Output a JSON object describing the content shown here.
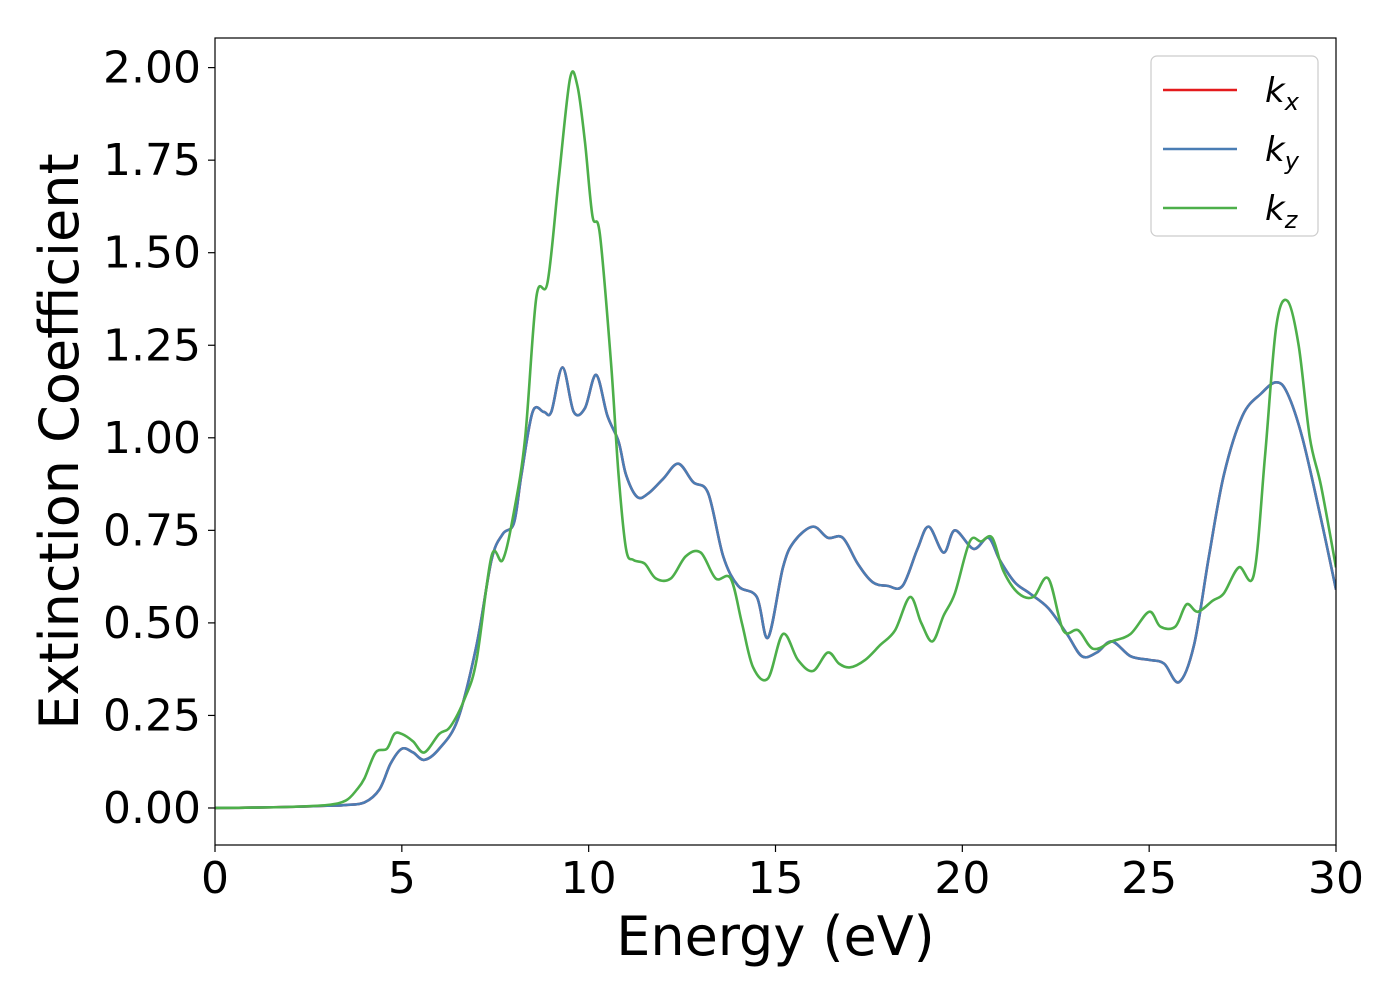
{
  "chart_data": {
    "type": "line",
    "title": "",
    "xlabel": "Energy (eV)",
    "ylabel": "Extinction Coefficient",
    "xlim": [
      0,
      30
    ],
    "ylim": [
      -0.1,
      2.08
    ],
    "xticks": [
      0,
      5,
      10,
      15,
      20,
      25,
      30
    ],
    "xtick_labels": [
      "0",
      "5",
      "10",
      "15",
      "20",
      "25",
      "30"
    ],
    "yticks": [
      0.0,
      0.25,
      0.5,
      0.75,
      1.0,
      1.25,
      1.5,
      1.75,
      2.0
    ],
    "ytick_labels": [
      "0.00",
      "0.25",
      "0.50",
      "0.75",
      "1.00",
      "1.25",
      "1.50",
      "1.75",
      "2.00"
    ],
    "grid": false,
    "legend_position": "top-right",
    "series": [
      {
        "name": "kx",
        "legend_base": "k",
        "legend_sub": "x",
        "color": "#e41a1c",
        "x": [
          0,
          1,
          2,
          3,
          3.5,
          4,
          4.4,
          4.7,
          5,
          5.3,
          5.6,
          6,
          6.5,
          7,
          7.4,
          7.7,
          8,
          8.2,
          8.5,
          8.8,
          9,
          9.3,
          9.6,
          9.9,
          10.2,
          10.5,
          10.8,
          11,
          11.3,
          11.6,
          12,
          12.4,
          12.8,
          13.2,
          13.6,
          14,
          14.5,
          14.8,
          15.2,
          15.5,
          16,
          16.4,
          16.8,
          17.2,
          17.6,
          18,
          18.4,
          18.8,
          19.1,
          19.5,
          19.8,
          20.3,
          20.7,
          21,
          21.4,
          21.8,
          22.3,
          22.8,
          23.2,
          23.6,
          24,
          24.5,
          25,
          25.4,
          25.8,
          26.2,
          26.6,
          27,
          27.5,
          28,
          28.4,
          28.7,
          29.1,
          29.6,
          30
        ],
        "y": [
          0.0,
          0.001,
          0.003,
          0.006,
          0.008,
          0.015,
          0.05,
          0.12,
          0.16,
          0.15,
          0.13,
          0.16,
          0.24,
          0.44,
          0.67,
          0.74,
          0.77,
          0.9,
          1.07,
          1.07,
          1.07,
          1.19,
          1.07,
          1.08,
          1.17,
          1.06,
          0.99,
          0.9,
          0.84,
          0.85,
          0.89,
          0.93,
          0.88,
          0.85,
          0.68,
          0.6,
          0.57,
          0.46,
          0.65,
          0.72,
          0.76,
          0.73,
          0.73,
          0.66,
          0.61,
          0.6,
          0.6,
          0.7,
          0.76,
          0.69,
          0.75,
          0.7,
          0.73,
          0.67,
          0.61,
          0.58,
          0.54,
          0.47,
          0.41,
          0.42,
          0.45,
          0.41,
          0.4,
          0.39,
          0.34,
          0.44,
          0.68,
          0.9,
          1.06,
          1.12,
          1.15,
          1.12,
          1.0,
          0.78,
          0.59
        ]
      },
      {
        "name": "ky",
        "legend_base": "k",
        "legend_sub": "y",
        "color": "#4a7db4",
        "x": [
          0,
          1,
          2,
          3,
          3.5,
          4,
          4.4,
          4.7,
          5,
          5.3,
          5.6,
          6,
          6.5,
          7,
          7.4,
          7.7,
          8,
          8.2,
          8.5,
          8.8,
          9,
          9.3,
          9.6,
          9.9,
          10.2,
          10.5,
          10.8,
          11,
          11.3,
          11.6,
          12,
          12.4,
          12.8,
          13.2,
          13.6,
          14,
          14.5,
          14.8,
          15.2,
          15.5,
          16,
          16.4,
          16.8,
          17.2,
          17.6,
          18,
          18.4,
          18.8,
          19.1,
          19.5,
          19.8,
          20.3,
          20.7,
          21,
          21.4,
          21.8,
          22.3,
          22.8,
          23.2,
          23.6,
          24,
          24.5,
          25,
          25.4,
          25.8,
          26.2,
          26.6,
          27,
          27.5,
          28,
          28.4,
          28.7,
          29.1,
          29.6,
          30
        ],
        "y": [
          0.0,
          0.001,
          0.003,
          0.006,
          0.008,
          0.015,
          0.05,
          0.12,
          0.16,
          0.15,
          0.13,
          0.16,
          0.24,
          0.44,
          0.67,
          0.74,
          0.77,
          0.9,
          1.07,
          1.07,
          1.07,
          1.19,
          1.07,
          1.08,
          1.17,
          1.06,
          0.99,
          0.9,
          0.84,
          0.85,
          0.89,
          0.93,
          0.88,
          0.85,
          0.68,
          0.6,
          0.57,
          0.46,
          0.65,
          0.72,
          0.76,
          0.73,
          0.73,
          0.66,
          0.61,
          0.6,
          0.6,
          0.7,
          0.76,
          0.69,
          0.75,
          0.7,
          0.73,
          0.67,
          0.61,
          0.58,
          0.54,
          0.47,
          0.41,
          0.42,
          0.45,
          0.41,
          0.4,
          0.39,
          0.34,
          0.44,
          0.68,
          0.9,
          1.06,
          1.12,
          1.15,
          1.12,
          1.0,
          0.78,
          0.59
        ]
      },
      {
        "name": "kz",
        "legend_base": "k",
        "legend_sub": "z",
        "color": "#4daf4a",
        "x": [
          0,
          1,
          2,
          3,
          3.5,
          3.8,
          4,
          4.3,
          4.6,
          4.8,
          5,
          5.3,
          5.6,
          6,
          6.3,
          6.7,
          7,
          7.4,
          7.7,
          8,
          8.3,
          8.6,
          8.9,
          9.2,
          9.5,
          9.7,
          9.9,
          10.1,
          10.3,
          10.6,
          10.8,
          11,
          11.2,
          11.5,
          11.8,
          12.2,
          12.6,
          13,
          13.4,
          13.8,
          14.1,
          14.4,
          14.8,
          15.2,
          15.6,
          16,
          16.4,
          16.7,
          17,
          17.4,
          17.8,
          18.2,
          18.6,
          18.9,
          19.2,
          19.5,
          19.8,
          20.2,
          20.5,
          20.8,
          21.1,
          21.5,
          21.9,
          22.3,
          22.7,
          23.1,
          23.5,
          24,
          24.5,
          25,
          25.3,
          25.7,
          26,
          26.3,
          26.7,
          27,
          27.4,
          27.8,
          28.1,
          28.4,
          28.7,
          29,
          29.3,
          29.6,
          30
        ],
        "y": [
          0.0,
          0.001,
          0.003,
          0.008,
          0.02,
          0.05,
          0.08,
          0.15,
          0.16,
          0.2,
          0.2,
          0.18,
          0.15,
          0.2,
          0.22,
          0.3,
          0.4,
          0.68,
          0.67,
          0.8,
          1.0,
          1.38,
          1.42,
          1.7,
          1.97,
          1.95,
          1.8,
          1.6,
          1.55,
          1.2,
          0.9,
          0.7,
          0.67,
          0.66,
          0.62,
          0.62,
          0.68,
          0.69,
          0.62,
          0.62,
          0.5,
          0.38,
          0.35,
          0.47,
          0.4,
          0.37,
          0.42,
          0.39,
          0.38,
          0.4,
          0.44,
          0.48,
          0.57,
          0.5,
          0.45,
          0.52,
          0.58,
          0.72,
          0.72,
          0.73,
          0.64,
          0.58,
          0.57,
          0.62,
          0.48,
          0.48,
          0.43,
          0.45,
          0.47,
          0.53,
          0.49,
          0.49,
          0.55,
          0.53,
          0.56,
          0.58,
          0.65,
          0.63,
          0.95,
          1.3,
          1.37,
          1.25,
          1.0,
          0.87,
          0.65
        ]
      }
    ]
  }
}
